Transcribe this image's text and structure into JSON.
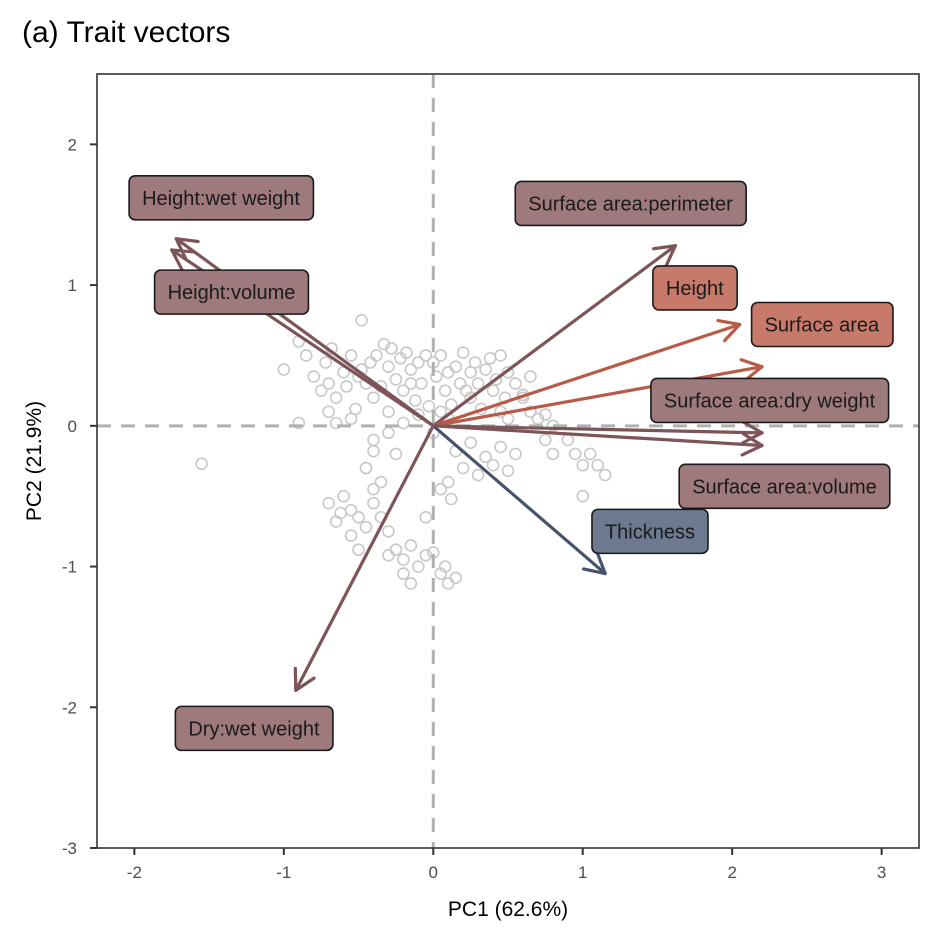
{
  "chart_data": {
    "type": "scatter",
    "title": "(a) Trait vectors",
    "xlabel": "PC1 (62.6%)",
    "ylabel": "PC2 (21.9%)",
    "xlim": [
      -2.25,
      3.25
    ],
    "ylim": [
      -3.0,
      2.5
    ],
    "xticks": [
      -2,
      -1,
      0,
      1,
      2,
      3
    ],
    "yticks": [
      -3,
      -2,
      -1,
      0,
      1,
      2
    ],
    "reference_lines": {
      "x": 0,
      "y": 0,
      "style": "dashed"
    },
    "colors": {
      "points": "#c8c8c8",
      "ratio": "#7d5558",
      "ratio_fill": "#9e7a7c",
      "size": "#b85a48",
      "size_fill": "#c87a6a",
      "thickness": "#46546e",
      "thickness_fill": "#6c7990",
      "reference": "#b0b0b0"
    },
    "points": [
      [
        -1.55,
        -0.27
      ],
      [
        -1.0,
        0.4
      ],
      [
        -0.9,
        0.6
      ],
      [
        -0.85,
        0.5
      ],
      [
        -0.8,
        0.35
      ],
      [
        -0.75,
        0.25
      ],
      [
        -0.72,
        0.45
      ],
      [
        -0.7,
        0.3
      ],
      [
        -0.68,
        0.55
      ],
      [
        -0.65,
        0.2
      ],
      [
        -0.6,
        0.38
      ],
      [
        -0.58,
        0.28
      ],
      [
        -0.55,
        0.5
      ],
      [
        -0.52,
        0.12
      ],
      [
        -0.5,
        0.35
      ],
      [
        -0.48,
        0.4
      ],
      [
        -0.45,
        0.3
      ],
      [
        -0.42,
        0.45
      ],
      [
        -0.4,
        0.2
      ],
      [
        -0.38,
        0.5
      ],
      [
        -0.35,
        0.28
      ],
      [
        -0.33,
        0.58
      ],
      [
        -0.3,
        0.1
      ],
      [
        -0.28,
        0.55
      ],
      [
        -0.25,
        0.33
      ],
      [
        -0.22,
        0.48
      ],
      [
        -0.2,
        0.25
      ],
      [
        -0.18,
        0.52
      ],
      [
        -0.15,
        0.4
      ],
      [
        -0.12,
        0.18
      ],
      [
        -0.1,
        0.45
      ],
      [
        -0.08,
        0.3
      ],
      [
        -0.05,
        0.5
      ],
      [
        -0.03,
        0.14
      ],
      [
        0.0,
        0.45
      ],
      [
        0.02,
        0.35
      ],
      [
        0.05,
        0.5
      ],
      [
        0.08,
        0.25
      ],
      [
        0.1,
        0.38
      ],
      [
        0.12,
        0.15
      ],
      [
        0.15,
        0.42
      ],
      [
        0.18,
        0.3
      ],
      [
        0.2,
        0.52
      ],
      [
        0.22,
        0.25
      ],
      [
        0.25,
        0.38
      ],
      [
        0.28,
        0.45
      ],
      [
        0.3,
        0.3
      ],
      [
        0.32,
        0.12
      ],
      [
        0.35,
        0.4
      ],
      [
        0.38,
        0.48
      ],
      [
        0.4,
        0.25
      ],
      [
        0.42,
        0.33
      ],
      [
        0.45,
        0.5
      ],
      [
        0.48,
        0.2
      ],
      [
        0.5,
        0.38
      ],
      [
        0.55,
        0.3
      ],
      [
        0.6,
        0.22
      ],
      [
        0.65,
        0.1
      ],
      [
        0.7,
        0.05
      ],
      [
        0.75,
        0.08
      ],
      [
        0.8,
        0.0
      ],
      [
        0.5,
        0.05
      ],
      [
        0.45,
        0.1
      ],
      [
        -0.48,
        0.75
      ],
      [
        -0.7,
        0.1
      ],
      [
        -0.9,
        0.02
      ],
      [
        -0.65,
        0.02
      ],
      [
        -0.4,
        -0.1
      ],
      [
        -0.3,
        -0.05
      ],
      [
        -0.2,
        0.02
      ],
      [
        -0.1,
        0.08
      ],
      [
        0.05,
        0.1
      ],
      [
        0.1,
        0.05
      ],
      [
        0.0,
        -0.05
      ],
      [
        -0.45,
        -0.3
      ],
      [
        -0.4,
        -0.45
      ],
      [
        -0.6,
        -0.5
      ],
      [
        -0.7,
        -0.55
      ],
      [
        -0.62,
        -0.62
      ],
      [
        -0.55,
        -0.6
      ],
      [
        -0.5,
        -0.65
      ],
      [
        -0.65,
        -0.68
      ],
      [
        -0.55,
        -0.78
      ],
      [
        -0.5,
        -0.88
      ],
      [
        -0.45,
        -0.72
      ],
      [
        -0.35,
        -0.65
      ],
      [
        -0.3,
        -0.75
      ],
      [
        -0.25,
        -0.88
      ],
      [
        -0.2,
        -0.95
      ],
      [
        -0.15,
        -0.85
      ],
      [
        -0.1,
        -1.0
      ],
      [
        -0.05,
        -0.92
      ],
      [
        0.0,
        -0.9
      ],
      [
        -0.3,
        -0.92
      ],
      [
        -0.2,
        -1.05
      ],
      [
        -0.15,
        -1.12
      ],
      [
        -0.05,
        -0.65
      ],
      [
        -0.4,
        -0.55
      ],
      [
        -0.45,
        -0.3
      ],
      [
        -0.35,
        -0.4
      ],
      [
        -0.25,
        -0.2
      ],
      [
        -0.4,
        -0.18
      ],
      [
        0.05,
        -0.45
      ],
      [
        0.1,
        -0.4
      ],
      [
        0.12,
        -0.52
      ],
      [
        0.2,
        -0.3
      ],
      [
        0.3,
        -0.35
      ],
      [
        0.4,
        -0.28
      ],
      [
        0.5,
        -0.32
      ],
      [
        0.55,
        -0.2
      ],
      [
        0.45,
        -0.15
      ],
      [
        0.35,
        -0.22
      ],
      [
        0.25,
        -0.12
      ],
      [
        0.15,
        -0.18
      ],
      [
        0.05,
        -1.05
      ],
      [
        0.1,
        -1.12
      ],
      [
        0.15,
        -1.08
      ],
      [
        0.08,
        -1.0
      ],
      [
        0.8,
        -0.2
      ],
      [
        0.75,
        -0.1
      ],
      [
        0.9,
        -0.1
      ],
      [
        0.95,
        -0.2
      ],
      [
        1.0,
        -0.28
      ],
      [
        1.05,
        -0.2
      ],
      [
        1.1,
        -0.28
      ],
      [
        1.15,
        -0.35
      ],
      [
        1.0,
        -0.5
      ],
      [
        -0.3,
        0.42
      ],
      [
        -0.15,
        0.3
      ],
      [
        0.25,
        0.2
      ],
      [
        -0.55,
        0.05
      ],
      [
        0.65,
        0.35
      ],
      [
        0.6,
        0.2
      ]
    ],
    "vectors": [
      {
        "label": "Height:wet weight",
        "group": "ratio",
        "x": -1.72,
        "y": 1.33,
        "label_x": -1.42,
        "label_y": 1.62
      },
      {
        "label": "Height:volume",
        "group": "ratio",
        "x": -1.75,
        "y": 1.25,
        "label_x": -1.35,
        "label_y": 0.95
      },
      {
        "label": "Surface area:perimeter",
        "group": "ratio",
        "x": 1.62,
        "y": 1.28,
        "label_x": 1.32,
        "label_y": 1.58
      },
      {
        "label": "Height",
        "group": "size",
        "x": 2.05,
        "y": 0.72,
        "label_x": 1.75,
        "label_y": 0.98
      },
      {
        "label": "Surface area",
        "group": "size",
        "x": 2.2,
        "y": 0.42,
        "label_x": 2.6,
        "label_y": 0.72
      },
      {
        "label": "Surface area:dry weight",
        "group": "ratio",
        "x": 2.2,
        "y": -0.05,
        "label_x": 2.25,
        "label_y": 0.18
      },
      {
        "label": "Surface area:volume",
        "group": "ratio",
        "x": 2.2,
        "y": -0.14,
        "label_x": 2.35,
        "label_y": -0.43
      },
      {
        "label": "Thickness",
        "group": "thickness",
        "x": 1.15,
        "y": -1.05,
        "label_x": 1.45,
        "label_y": -0.75
      },
      {
        "label": "Dry:wet weight",
        "group": "ratio",
        "x": -0.92,
        "y": -1.88,
        "label_x": -1.2,
        "label_y": -2.15
      }
    ]
  }
}
